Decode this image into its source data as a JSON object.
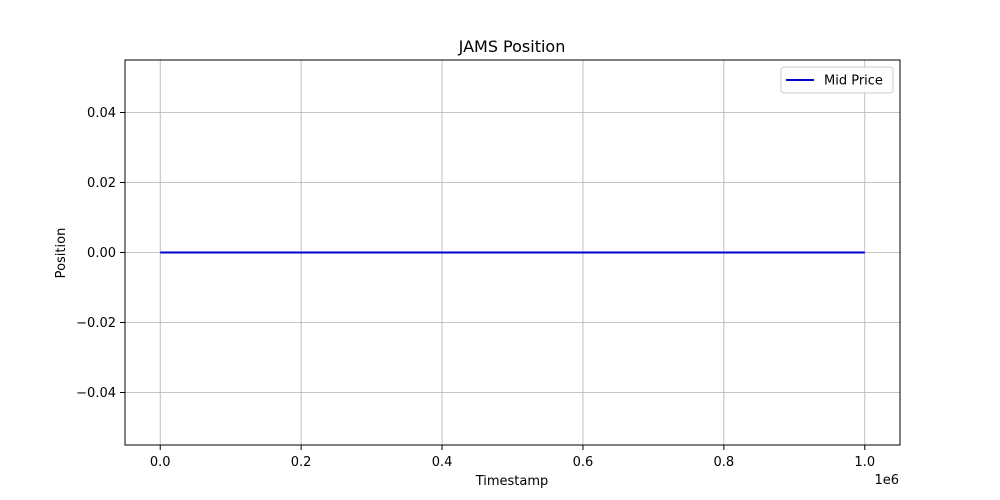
{
  "chart_data": {
    "type": "line",
    "title": "JAMS Position",
    "xlabel": "Timestamp",
    "ylabel": "Position",
    "x_offset_label": "1e6",
    "xlim": [
      -50000,
      1050000
    ],
    "ylim": [
      -0.055,
      0.055
    ],
    "x_ticks": [
      0,
      200000,
      400000,
      600000,
      800000,
      1000000
    ],
    "x_tick_labels": [
      "0.0",
      "0.2",
      "0.4",
      "0.6",
      "0.8",
      "1.0"
    ],
    "y_ticks": [
      -0.04,
      -0.02,
      0.0,
      0.02,
      0.04
    ],
    "y_tick_labels": [
      "−0.04",
      "−0.02",
      "0.00",
      "0.02",
      "0.04"
    ],
    "grid": true,
    "legend_position": "top-right",
    "series": [
      {
        "name": "Mid Price",
        "color": "#0000cc",
        "x": [
          0,
          1000000
        ],
        "y": [
          0,
          0
        ]
      }
    ]
  }
}
